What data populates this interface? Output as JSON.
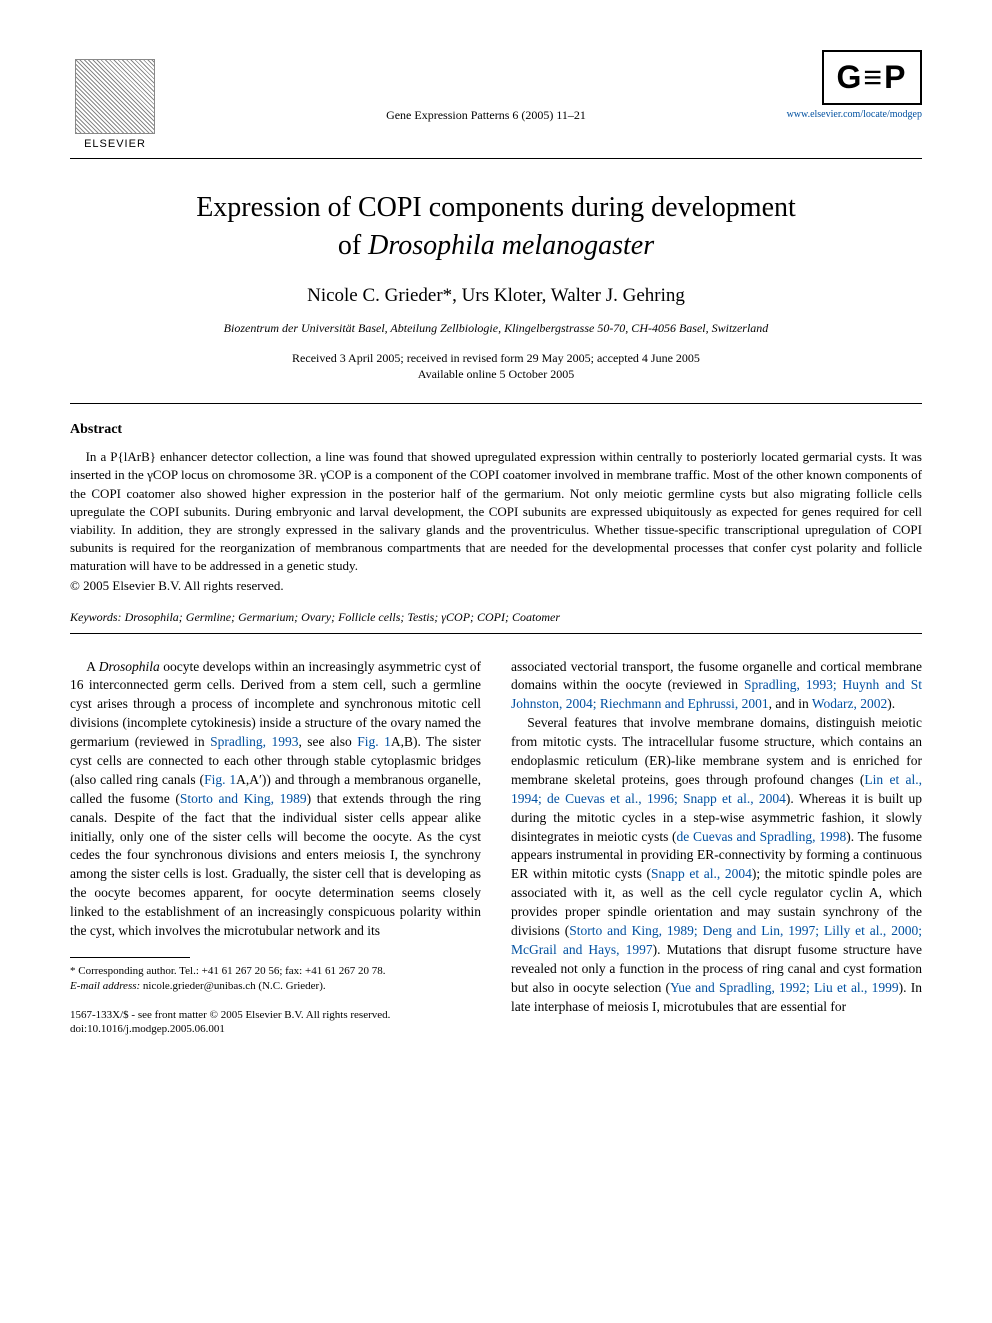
{
  "header": {
    "elsevier_label": "ELSEVIER",
    "journal_ref": "Gene Expression Patterns 6 (2005) 11–21",
    "gep_text": "G≡P",
    "gep_link": "www.elsevier.com/locate/modgep"
  },
  "title_line1": "Expression of COPI components during development",
  "title_line2_prefix": "of ",
  "title_line2_species": "Drosophila melanogaster",
  "authors": "Nicole C. Grieder*, Urs Kloter, Walter J. Gehring",
  "affiliation": "Biozentrum der Universität Basel, Abteilung Zellbiologie, Klingelbergstrasse 50-70, CH-4056 Basel, Switzerland",
  "dates_line1": "Received 3 April 2005; received in revised form 29 May 2005; accepted 4 June 2005",
  "dates_line2": "Available online 5 October 2005",
  "abstract_heading": "Abstract",
  "abstract_body": "In a P{lArB} enhancer detector collection, a line was found that showed upregulated expression within centrally to posteriorly located germarial cysts. It was inserted in the γCOP locus on chromosome 3R. γCOP is a component of the COPI coatomer involved in membrane traffic. Most of the other known components of the COPI coatomer also showed higher expression in the posterior half of the germarium. Not only meiotic germline cysts but also migrating follicle cells upregulate the COPI subunits. During embryonic and larval development, the COPI subunits are expressed ubiquitously as expected for genes required for cell viability. In addition, they are strongly expressed in the salivary glands and the proventriculus. Whether tissue-specific transcriptional upregulation of COPI subunits is required for the reorganization of membranous compartments that are needed for the developmental processes that confer cyst polarity and follicle maturation will have to be addressed in a genetic study.",
  "copyright_line": "© 2005 Elsevier B.V. All rights reserved.",
  "keywords_label": "Keywords:",
  "keywords_body": " Drosophila; Germline; Germarium; Ovary; Follicle cells; Testis; γCOP; COPI; Coatomer",
  "col_left": {
    "p1_a": "A ",
    "p1_species": "Drosophila",
    "p1_b": " oocyte develops within an increasingly asymmetric cyst of 16 interconnected germ cells. Derived from a stem cell, such a germline cyst arises through a process of incomplete and synchronous mitotic cell divisions (incomplete cytokinesis) inside a structure of the ovary named the germarium (reviewed in ",
    "p1_cite1": "Spradling, 1993",
    "p1_c": ", see also ",
    "p1_cite2": "Fig. 1",
    "p1_d": "A,B). The sister cyst cells are connected to each other through stable cytoplasmic bridges (also called ring canals (",
    "p1_cite3": "Fig. 1",
    "p1_e": "A,A′)) and through a membranous organelle, called the fusome (",
    "p1_cite4": "Storto and King, 1989",
    "p1_f": ") that extends through the ring canals. Despite of the fact that the individual sister cells appear alike initially, only one of the sister cells will become the oocyte. As the cyst cedes the four synchronous divisions and enters meiosis I, the synchrony among the sister cells is lost. Gradually, the sister cell that is developing as the oocyte becomes apparent, for oocyte determination seems closely linked to the establishment of an increasingly conspicuous polarity within the cyst, which involves the microtubular network and its"
  },
  "footnote": {
    "corr": "* Corresponding author. Tel.: +41 61 267 20 56; fax: +41 61 267 20 78.",
    "email_label": "E-mail address:",
    "email_value": " nicole.grieder@unibas.ch (N.C. Grieder)."
  },
  "footer": {
    "line1": "1567-133X/$ - see front matter © 2005 Elsevier B.V. All rights reserved.",
    "line2": "doi:10.1016/j.modgep.2005.06.001"
  },
  "col_right": {
    "p1_a": "associated vectorial transport, the fusome organelle and cortical membrane domains within the oocyte (reviewed in ",
    "p1_cite1": "Spradling, 1993; Huynh and St Johnston, 2004; Riechmann and Ephrussi, 2001",
    "p1_b": ", and in ",
    "p1_cite2": "Wodarz, 2002",
    "p1_c": ").",
    "p2_a": "Several features that involve membrane domains, distinguish meiotic from mitotic cysts. The intracellular fusome structure, which contains an endoplasmic reticulum (ER)-like membrane system and is enriched for membrane skeletal proteins, goes through profound changes (",
    "p2_cite1": "Lin et al., 1994; de Cuevas et al., 1996; Snapp et al., 2004",
    "p2_b": "). Whereas it is built up during the mitotic cycles in a step-wise asymmetric fashion, it slowly disintegrates in meiotic cysts (",
    "p2_cite2": "de Cuevas and Spradling, 1998",
    "p2_c": "). The fusome appears instrumental in providing ER-connectivity by forming a continuous ER within mitotic cysts (",
    "p2_cite3": "Snapp et al., 2004",
    "p2_d": "); the mitotic spindle poles are associated with it, as well as the cell cycle regulator cyclin A, which provides proper spindle orientation and may sustain synchrony of the divisions (",
    "p2_cite4": "Storto and King, 1989; Deng and Lin, 1997; Lilly et al., 2000; McGrail and Hays, 1997",
    "p2_e": "). Mutations that disrupt fusome structure have revealed not only a function in the process of ring canal and cyst formation but also in oocyte selection (",
    "p2_cite5": "Yue and Spradling, 1992; Liu et al., 1999",
    "p2_f": "). In late interphase of meiosis I, microtubules that are essential for"
  }
}
